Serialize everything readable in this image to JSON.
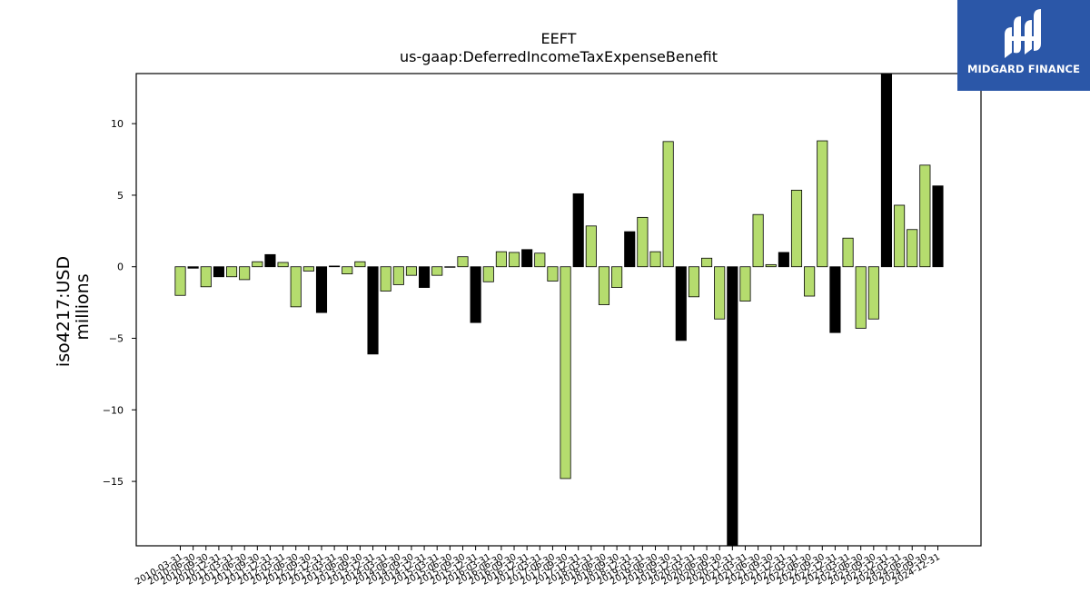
{
  "chart_data": {
    "type": "bar",
    "title": "EEFT",
    "subtitle": "us-gaap:DeferredIncomeTaxExpenseBenefit",
    "ylabel": "iso4217:USD",
    "ylabel2": "millions",
    "xlabel": "",
    "ylim": [
      -19.5,
      13.5
    ],
    "yticks": [
      -15,
      -10,
      -5,
      0,
      5,
      10
    ],
    "ytick_labels": [
      "−15",
      "−10",
      "−5",
      "0",
      "5",
      "10"
    ],
    "grid": false,
    "colors": {
      "quarter": "#b5dc6e",
      "annual": "#000000",
      "edge": "#000000"
    },
    "categories": [
      "2010-03-31",
      "2010-06-30",
      "2010-09-30",
      "2010-12-31",
      "2011-03-31",
      "2011-06-30",
      "2011-09-30",
      "2011-12-31",
      "2012-03-31",
      "2012-06-30",
      "2012-09-30",
      "2012-12-31",
      "2013-03-31",
      "2013-06-30",
      "2013-09-30",
      "2013-12-31",
      "2014-03-31",
      "2014-06-30",
      "2014-09-30",
      "2014-12-31",
      "2015-03-31",
      "2015-06-30",
      "2015-09-30",
      "2015-12-31",
      "2016-03-31",
      "2016-06-30",
      "2016-09-30",
      "2016-12-31",
      "2017-03-31",
      "2017-06-30",
      "2017-09-30",
      "2017-12-31",
      "2018-03-31",
      "2018-06-30",
      "2018-09-30",
      "2018-12-31",
      "2019-03-31",
      "2019-06-30",
      "2019-09-30",
      "2019-12-31",
      "2020-03-31",
      "2020-06-30",
      "2020-09-30",
      "2020-12-31",
      "2021-03-31",
      "2021-06-30",
      "2021-09-30",
      "2021-12-31",
      "2022-03-31",
      "2022-06-30",
      "2022-09-30",
      "2022-12-31",
      "2023-03-31",
      "2023-06-30",
      "2023-09-30",
      "2023-12-31",
      "2024-03-31",
      "2024-06-30",
      "2024-09-30",
      "2024-12-31"
    ],
    "values": [
      -2.0,
      -0.1,
      -1.4,
      -0.7,
      -0.7,
      -0.9,
      0.35,
      0.85,
      0.3,
      -2.8,
      -0.3,
      -3.2,
      0.05,
      -0.5,
      0.35,
      -6.1,
      -1.7,
      -1.25,
      -0.6,
      -1.45,
      -0.6,
      0.0,
      0.7,
      -3.9,
      -1.05,
      1.05,
      1.0,
      1.2,
      0.95,
      -1.0,
      -14.8,
      5.1,
      2.85,
      -2.65,
      -1.45,
      2.45,
      3.45,
      1.05,
      8.75,
      -5.15,
      -2.1,
      0.6,
      -3.65,
      -19.5,
      -2.4,
      3.65,
      0.15,
      1.0,
      5.35,
      -2.05,
      8.8,
      -4.6,
      2.0,
      -4.3,
      -3.65,
      13.5,
      4.3,
      2.6,
      7.1,
      5.65
    ],
    "annual": [
      false,
      true,
      false,
      true,
      false,
      false,
      false,
      true,
      false,
      false,
      false,
      true,
      false,
      false,
      false,
      true,
      false,
      false,
      false,
      true,
      false,
      false,
      false,
      true,
      false,
      false,
      false,
      true,
      false,
      false,
      false,
      true,
      false,
      false,
      false,
      true,
      false,
      false,
      false,
      true,
      false,
      false,
      false,
      true,
      false,
      false,
      false,
      true,
      false,
      false,
      false,
      true,
      false,
      false,
      false,
      true,
      false,
      false,
      false,
      true
    ]
  },
  "logo": {
    "text": "MIDGARD FINANCE",
    "icon": "midgard-logo-icon"
  }
}
